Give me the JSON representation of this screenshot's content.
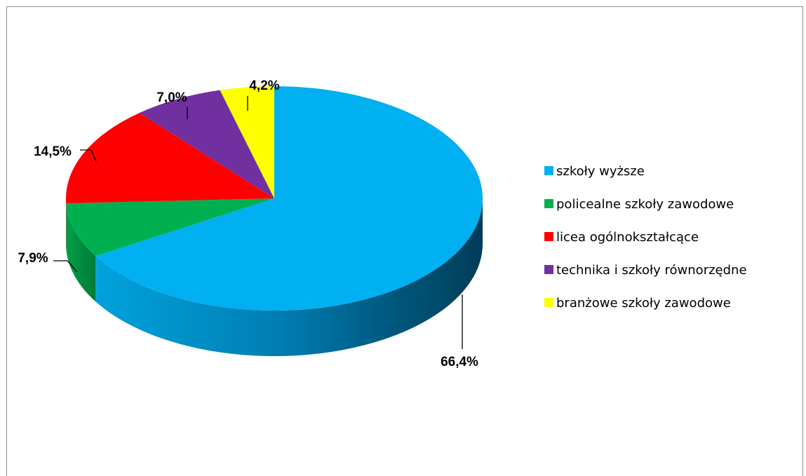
{
  "chart_data": {
    "type": "pie",
    "style": "3d",
    "title": "",
    "legend_position": "right",
    "categories": [
      "szkoły wyższe",
      "policealne szkoły zawodowe",
      "licea ogólnokształcące",
      "technika i szkoły równorzędne",
      "branżowe szkoły zawodowe"
    ],
    "values": [
      66.4,
      7.9,
      14.5,
      7.0,
      4.2
    ],
    "data_labels": [
      "66,4%",
      "7,9%",
      "14,5%",
      "7,0%",
      "4,2%"
    ],
    "colors": [
      "#00b0f0",
      "#00b050",
      "#ff0000",
      "#7030a0",
      "#ffff00"
    ]
  }
}
